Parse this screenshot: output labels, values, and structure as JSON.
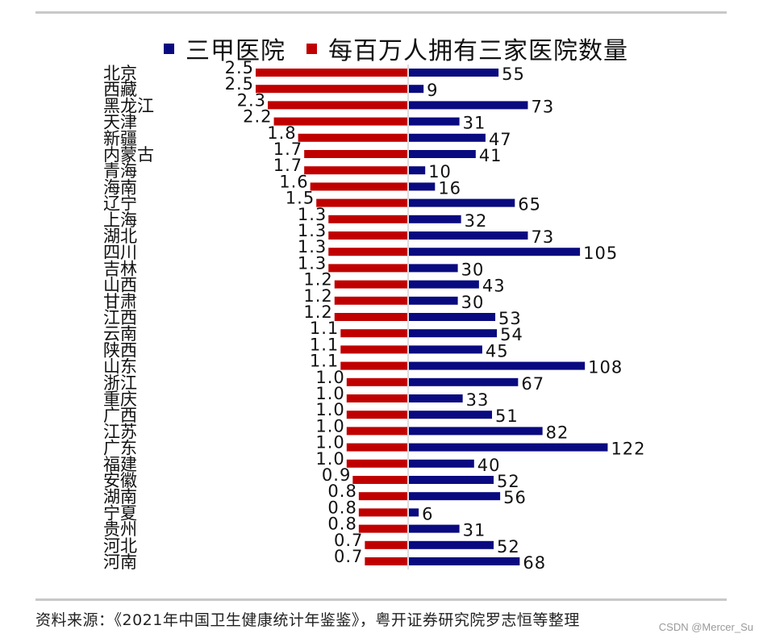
{
  "colors": {
    "hospitals": "#0a0a80",
    "per_million": "#c00000"
  },
  "source_note": "资料来源：《2021年中国卫生健康统计年鉴鉴》，粤开证券研究院罗志恒等整理",
  "watermark": "CSDN @Mercer_Su",
  "chart_data": {
    "type": "bar",
    "orientation": "horizontal-diverging",
    "legend_position": "top",
    "grid": false,
    "categories": [
      "北京",
      "西藏",
      "黑龙江",
      "天津",
      "新疆",
      "内蒙古",
      "青海",
      "海南",
      "辽宁",
      "上海",
      "湖北",
      "四川",
      "吉林",
      "山西",
      "甘肃",
      "江西",
      "云南",
      "陕西",
      "山东",
      "浙江",
      "重庆",
      "广西",
      "江苏",
      "广东",
      "福建",
      "安徽",
      "湖南",
      "宁夏",
      "贵州",
      "河北",
      "河南"
    ],
    "series": [
      {
        "name": "三甲医院",
        "side": "right",
        "values": [
          55,
          9,
          73,
          31,
          47,
          41,
          10,
          16,
          65,
          32,
          73,
          105,
          30,
          43,
          30,
          53,
          54,
          45,
          108,
          67,
          33,
          51,
          82,
          122,
          40,
          52,
          56,
          6,
          31,
          52,
          68
        ]
      },
      {
        "name": "每百万人拥有三家医院数量",
        "side": "left",
        "values": [
          "2.5",
          "2.5",
          "2.3",
          "2.2",
          "1.8",
          "1.7",
          "1.7",
          "1.6",
          "1.5",
          "1.3",
          "1.3",
          "1.3",
          "1.3",
          "1.2",
          "1.2",
          "1.2",
          "1.1",
          "1.1",
          "1.1",
          "1.0",
          "1.0",
          "1.0",
          "1.0",
          "1.0",
          "1.0",
          "0.9",
          "0.8",
          "0.8",
          "0.8",
          "0.7",
          "0.7"
        ]
      }
    ]
  }
}
